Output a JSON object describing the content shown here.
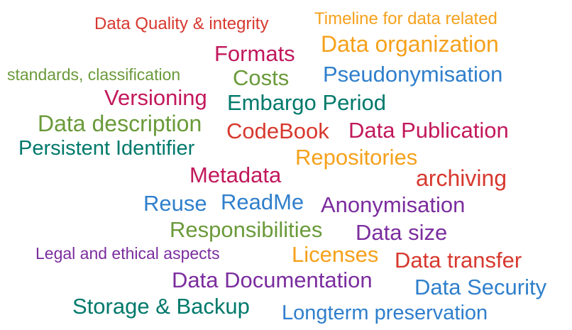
{
  "palette": {
    "red": "#d7382e",
    "orange": "#f5a11b",
    "magenta": "#c2185b",
    "green": "#6a9a3a",
    "blue": "#2f7fcc",
    "teal": "#00796b",
    "purple": "#7b2d9e"
  },
  "words": [
    {
      "text": "Data Quality & integrity",
      "color": "#d7382e"
    },
    {
      "text": "Timeline for data related",
      "color": "#f5a11b"
    },
    {
      "text": "Formats",
      "color": "#c2185b"
    },
    {
      "text": "Data organization",
      "color": "#f5a11b"
    },
    {
      "text": "standards, classification",
      "color": "#6a9a3a"
    },
    {
      "text": "Costs",
      "color": "#6a9a3a"
    },
    {
      "text": "Pseudonymisation",
      "color": "#2f7fcc"
    },
    {
      "text": "Versioning",
      "color": "#c2185b"
    },
    {
      "text": "Embargo Period",
      "color": "#00796b"
    },
    {
      "text": "Data description",
      "color": "#6a9a3a"
    },
    {
      "text": "CodeBook",
      "color": "#d7382e"
    },
    {
      "text": "Data Publication",
      "color": "#c2185b"
    },
    {
      "text": "Persistent Identifier",
      "color": "#00796b"
    },
    {
      "text": "Repositories",
      "color": "#f5a11b"
    },
    {
      "text": "Metadata",
      "color": "#c2185b"
    },
    {
      "text": "archiving",
      "color": "#d7382e"
    },
    {
      "text": "Reuse",
      "color": "#2f7fcc"
    },
    {
      "text": "ReadMe",
      "color": "#2f7fcc"
    },
    {
      "text": "Anonymisation",
      "color": "#7b2d9e"
    },
    {
      "text": "Responsibilities",
      "color": "#6a9a3a"
    },
    {
      "text": "Data size",
      "color": "#7b2d9e"
    },
    {
      "text": "Legal and ethical aspects",
      "color": "#7b2d9e"
    },
    {
      "text": "Licenses",
      "color": "#f5a11b"
    },
    {
      "text": "Data transfer",
      "color": "#d7382e"
    },
    {
      "text": "Data Documentation",
      "color": "#7b2d9e"
    },
    {
      "text": "Data Security",
      "color": "#2f7fcc"
    },
    {
      "text": "Storage & Backup",
      "color": "#00796b"
    },
    {
      "text": "Longterm preservation",
      "color": "#2f7fcc"
    }
  ]
}
